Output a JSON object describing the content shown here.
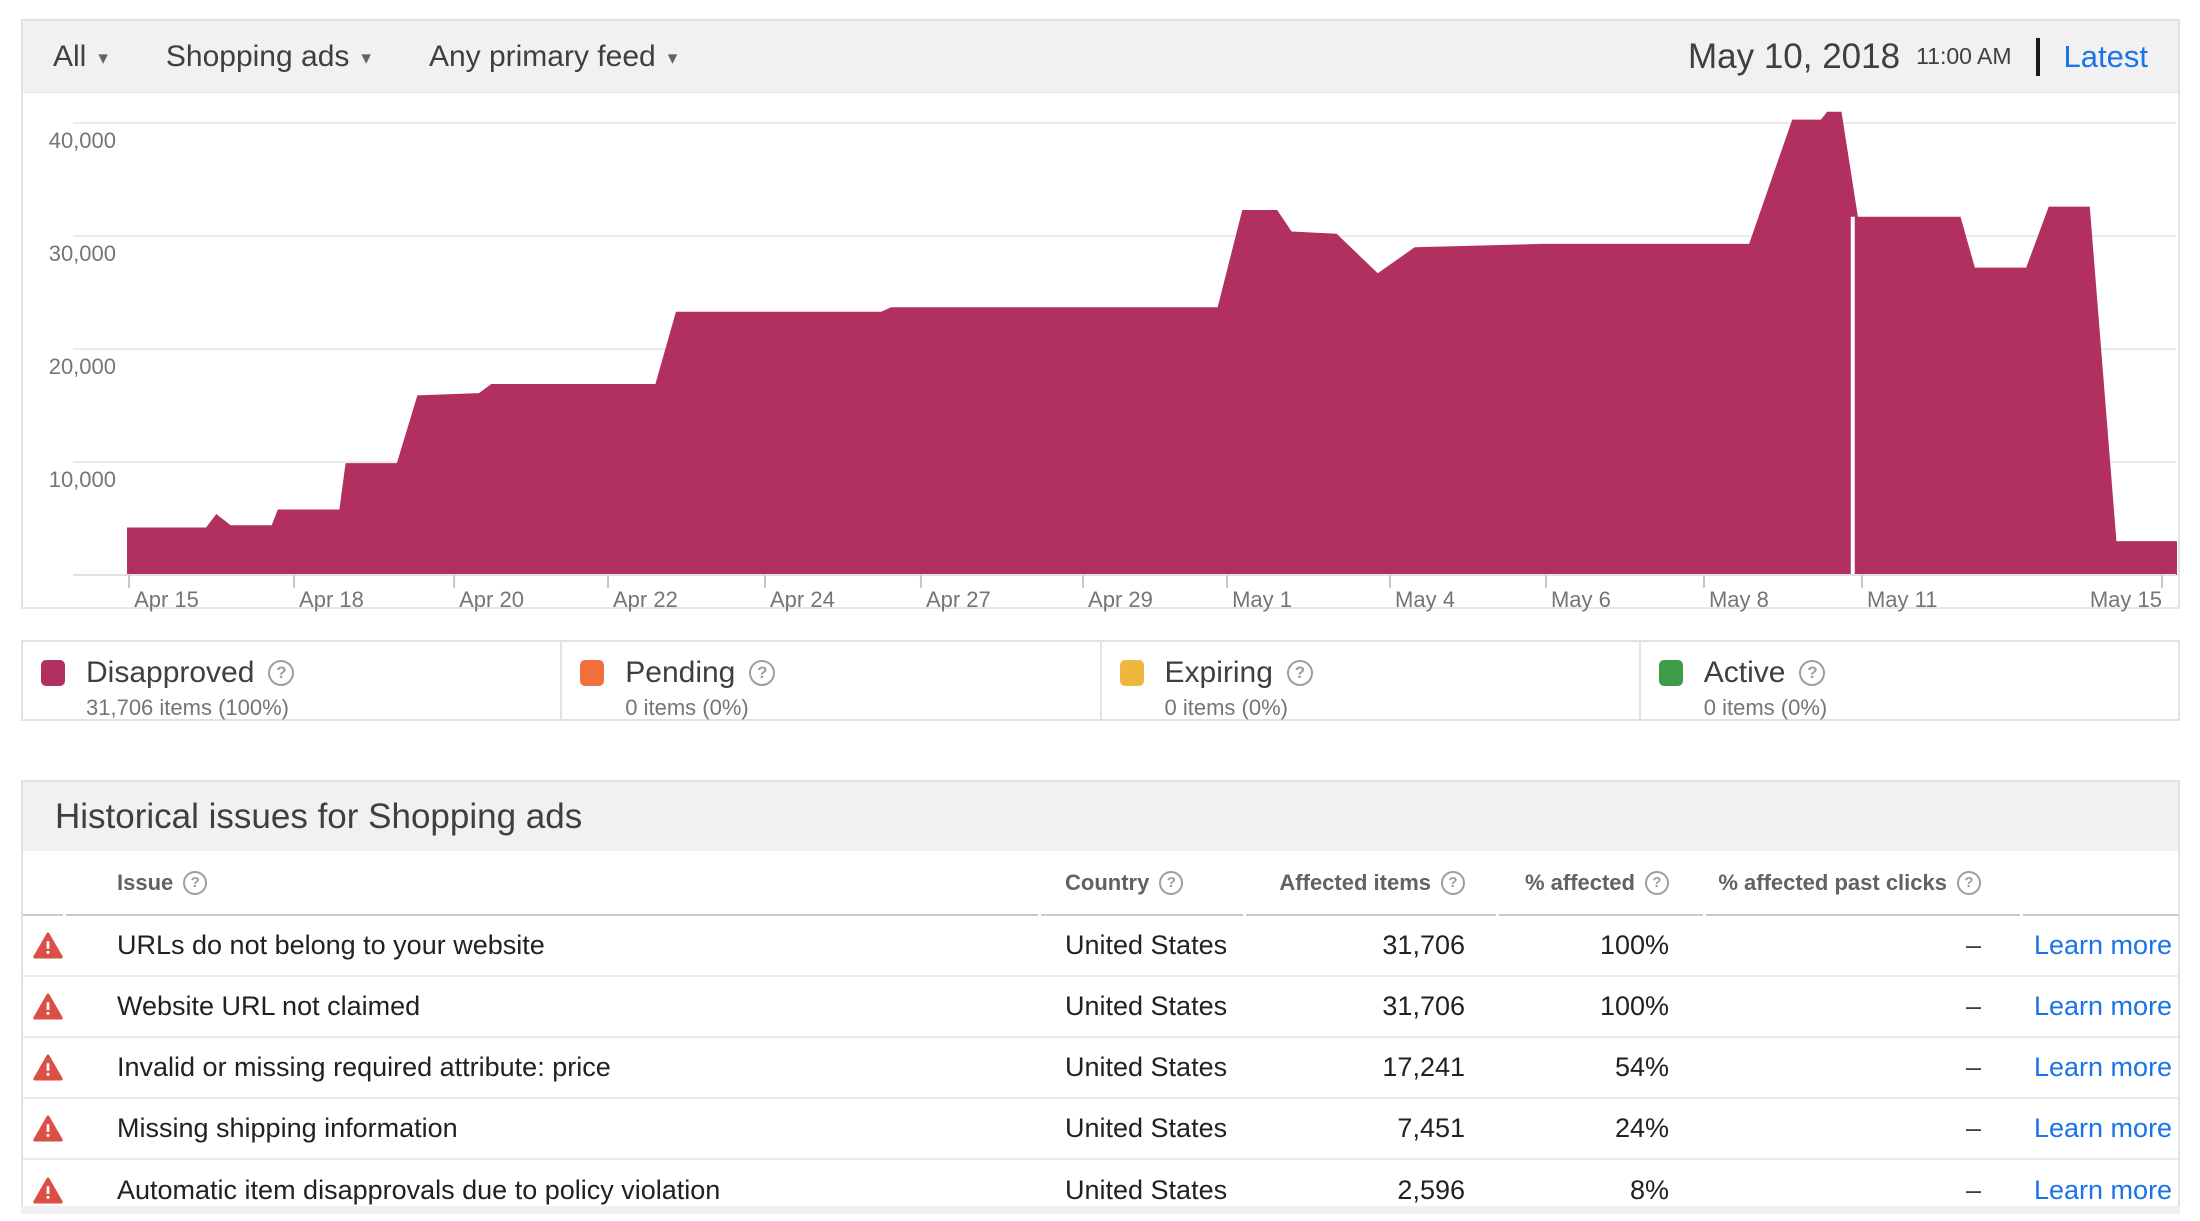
{
  "filters": {
    "scope": "All",
    "ad_type": "Shopping ads",
    "feed": "Any primary feed"
  },
  "header": {
    "date": "May 10, 2018",
    "time": "11:00 AM",
    "latest": "Latest"
  },
  "chart_data": {
    "type": "area",
    "series": [
      {
        "name": "Disapproved items",
        "color": "#b13060",
        "points": [
          [
            0.0005,
            4200
          ],
          [
            0.039,
            4200
          ],
          [
            0.044,
            5400
          ],
          [
            0.051,
            4400
          ],
          [
            0.071,
            4400
          ],
          [
            0.074,
            5800
          ],
          [
            0.104,
            5800
          ],
          [
            0.107,
            9900
          ],
          [
            0.132,
            9900
          ],
          [
            0.142,
            15900
          ],
          [
            0.172,
            16100
          ],
          [
            0.178,
            16900
          ],
          [
            0.258,
            16900
          ],
          [
            0.268,
            23300
          ],
          [
            0.368,
            23300
          ],
          [
            0.373,
            23700
          ],
          [
            0.532,
            23700
          ],
          [
            0.544,
            32300
          ],
          [
            0.561,
            32300
          ],
          [
            0.568,
            30400
          ],
          [
            0.59,
            30200
          ],
          [
            0.61,
            26700
          ],
          [
            0.628,
            29000
          ],
          [
            0.69,
            29300
          ],
          [
            0.791,
            29300
          ],
          [
            0.812,
            40300
          ],
          [
            0.826,
            40300
          ],
          [
            0.829,
            41000
          ],
          [
            0.836,
            41000
          ],
          [
            0.844,
            31700
          ],
          [
            0.894,
            31700
          ],
          [
            0.901,
            27200
          ],
          [
            0.926,
            27200
          ],
          [
            0.937,
            32600
          ],
          [
            0.957,
            32600
          ],
          [
            0.97,
            3000
          ],
          [
            0.9995,
            3000
          ]
        ]
      }
    ],
    "y_ticks": [
      {
        "label": "40,000",
        "v": 40000
      },
      {
        "label": "30,000",
        "v": 30000
      },
      {
        "label": "20,000",
        "v": 20000
      },
      {
        "label": "10,000",
        "v": 10000
      }
    ],
    "x_ticks": [
      {
        "label": "Apr 15",
        "f": 0.0015
      },
      {
        "label": "Apr 18",
        "f": 0.0819
      },
      {
        "label": "Apr 20",
        "f": 0.1599
      },
      {
        "label": "Apr 22",
        "f": 0.2349
      },
      {
        "label": "Apr 24",
        "f": 0.3114
      },
      {
        "label": "Apr 27",
        "f": 0.3874
      },
      {
        "label": "Apr 29",
        "f": 0.4664
      },
      {
        "label": "May 1",
        "f": 0.5366
      },
      {
        "label": "May 4",
        "f": 0.616
      },
      {
        "label": "May 6",
        "f": 0.692
      },
      {
        "label": "May 8",
        "f": 0.769
      },
      {
        "label": "May 11",
        "f": 0.846
      },
      {
        "label": "May 15",
        "f": 0.9922
      }
    ],
    "marker": {
      "f": 0.8415,
      "value": 31706,
      "color": "#ffffff"
    },
    "ylim": [
      0,
      42600
    ],
    "grid": true,
    "legend_position": "bottom"
  },
  "legend": {
    "items": [
      {
        "label": "Disapproved",
        "count": "31,706 items (100%)",
        "color": "#b13060"
      },
      {
        "label": "Pending",
        "count": "0 items (0%)",
        "color": "#f0713c"
      },
      {
        "label": "Expiring",
        "count": "0 items (0%)",
        "color": "#eeb73e"
      },
      {
        "label": "Active",
        "count": "0 items (0%)",
        "color": "#3d9c47"
      }
    ],
    "help_glyph": "?"
  },
  "table": {
    "title": "Historical issues for Shopping ads",
    "columns": [
      "Issue",
      "Country",
      "Affected items",
      "% affected",
      "% affected past clicks"
    ],
    "action_label": "Learn more",
    "rows": [
      {
        "issue": "URLs do not belong to your website",
        "country": "United States",
        "affected": "31,706",
        "pct": "100%",
        "past_clicks": "–"
      },
      {
        "issue": "Website URL not claimed",
        "country": "United States",
        "affected": "31,706",
        "pct": "100%",
        "past_clicks": "–"
      },
      {
        "issue": "Invalid or missing required attribute: price",
        "country": "United States",
        "affected": "17,241",
        "pct": "54%",
        "past_clicks": "–"
      },
      {
        "issue": "Missing shipping information",
        "country": "United States",
        "affected": "7,451",
        "pct": "24%",
        "past_clicks": "–"
      },
      {
        "issue": "Automatic item disapprovals due to policy violation",
        "country": "United States",
        "affected": "2,596",
        "pct": "8%",
        "past_clicks": "–"
      }
    ]
  },
  "colors": {
    "accent_blue": "#1a73e8",
    "warning_red": "#db4f44",
    "grid_line": "#e9eaec",
    "axis_line": "#dfe1e5"
  }
}
